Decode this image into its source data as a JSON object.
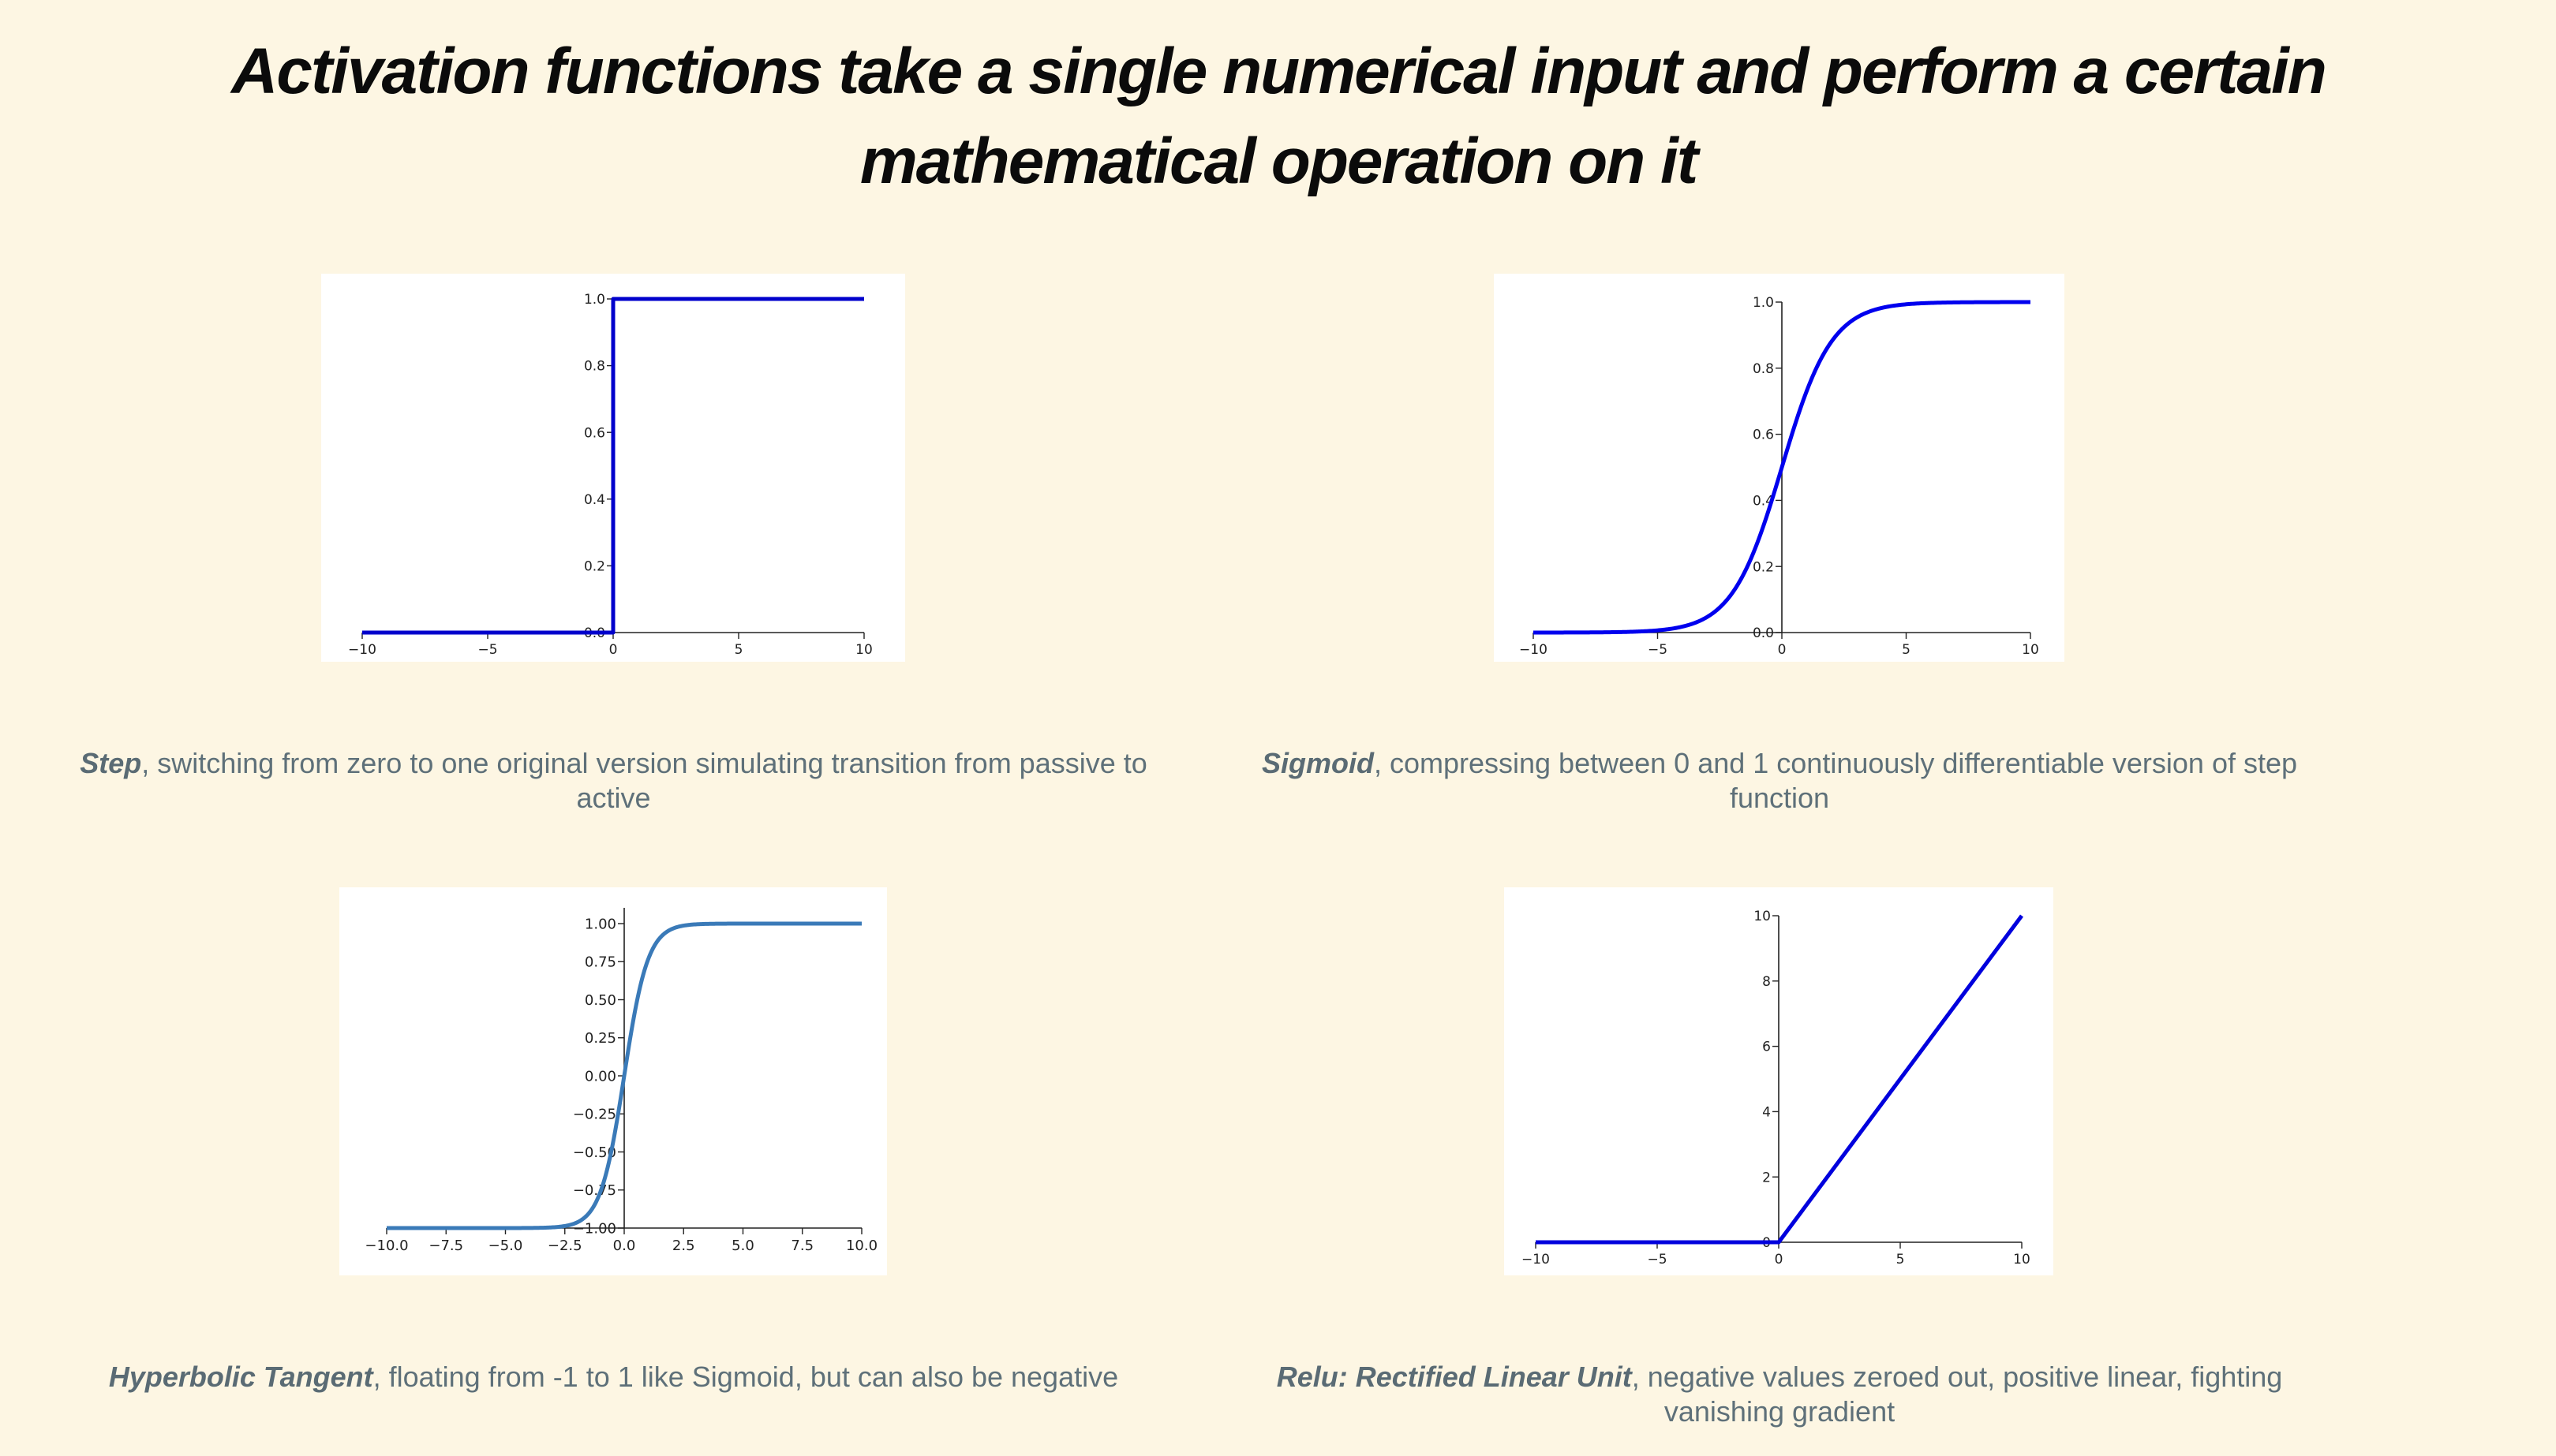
{
  "slide": {
    "title": "Activation functions take a single numerical input and perform a certain mathematical operation on it"
  },
  "captions": [
    {
      "name": "Step",
      "text": ", switching from zero to one original version simulating transition from passive to active"
    },
    {
      "name": "Sigmoid",
      "text": ", compressing between 0 and 1 continuously differentiable version of step function"
    },
    {
      "name": "Hyperbolic Tangent",
      "text": ", floating from -1 to 1 like Sigmoid, but can also be negative"
    },
    {
      "name": "Relu: Rectified Linear Unit",
      "text": ", negative values zeroed out, positive linear, fighting vanishing gradient"
    }
  ],
  "chart_data": [
    {
      "type": "line",
      "title": "",
      "xlabel": "",
      "ylabel": "",
      "function": "step",
      "xlim": [
        -10,
        10
      ],
      "ylim": [
        0,
        1
      ],
      "x_ticks": [
        -10,
        -5,
        0,
        5,
        10
      ],
      "x_tick_labels": [
        "−10",
        "−5",
        "0",
        "5",
        "10"
      ],
      "y_ticks": [
        0,
        0.2,
        0.4,
        0.6,
        0.8,
        1.0
      ],
      "y_tick_labels": [
        "0.0",
        "0.2",
        "0.4",
        "0.6",
        "0.8",
        "1.0"
      ],
      "x": [
        -10,
        0,
        0,
        10
      ],
      "y": [
        0,
        0,
        1,
        1
      ],
      "color": "#0000cc",
      "grid": false
    },
    {
      "type": "line",
      "title": "",
      "xlabel": "",
      "ylabel": "",
      "function": "sigmoid",
      "xlim": [
        -10,
        10
      ],
      "ylim": [
        0,
        1
      ],
      "x_ticks": [
        -10,
        -5,
        0,
        5,
        10
      ],
      "x_tick_labels": [
        "−10",
        "−5",
        "0",
        "5",
        "10"
      ],
      "y_ticks": [
        0,
        0.2,
        0.4,
        0.6,
        0.8,
        1.0
      ],
      "y_tick_labels": [
        "0.0",
        "0.2",
        "0.4",
        "0.6",
        "0.8",
        "1.0"
      ],
      "x": [
        -10,
        -8,
        -6,
        -5,
        -4,
        -3,
        -2,
        -1,
        0,
        1,
        2,
        3,
        4,
        5,
        6,
        8,
        10
      ],
      "y": [
        0.0,
        0.0003,
        0.0025,
        0.0067,
        0.018,
        0.047,
        0.119,
        0.269,
        0.5,
        0.731,
        0.881,
        0.953,
        0.982,
        0.993,
        0.9975,
        0.9997,
        1.0
      ],
      "color": "#0000ee",
      "grid": false
    },
    {
      "type": "line",
      "title": "",
      "xlabel": "",
      "ylabel": "",
      "function": "tanh",
      "xlim": [
        -10,
        10
      ],
      "ylim": [
        -1,
        1
      ],
      "x_ticks": [
        -10,
        -7.5,
        -5,
        -2.5,
        0,
        2.5,
        5,
        7.5,
        10
      ],
      "x_tick_labels": [
        "−10.0",
        "−7.5",
        "−5.0",
        "−2.5",
        "0.0",
        "2.5",
        "5.0",
        "7.5",
        "10.0"
      ],
      "y_ticks": [
        -1,
        -0.75,
        -0.5,
        -0.25,
        0,
        0.25,
        0.5,
        0.75,
        1
      ],
      "y_tick_labels": [
        "−1.00",
        "−0.75",
        "−0.50",
        "−0.25",
        "0.00",
        "0.25",
        "0.50",
        "0.75",
        "1.00"
      ],
      "x": [
        -10,
        -5,
        -4,
        -3,
        -2.5,
        -2,
        -1.5,
        -1,
        -0.5,
        0,
        0.5,
        1,
        1.5,
        2,
        2.5,
        3,
        4,
        5,
        10
      ],
      "y": [
        -1.0,
        -0.9999,
        -0.9993,
        -0.995,
        -0.987,
        -0.964,
        -0.905,
        -0.762,
        -0.462,
        0.0,
        0.462,
        0.762,
        0.905,
        0.964,
        0.987,
        0.995,
        0.9993,
        0.9999,
        1.0
      ],
      "color": "#3a7ab8",
      "grid": false
    },
    {
      "type": "line",
      "title": "",
      "xlabel": "",
      "ylabel": "",
      "function": "relu",
      "xlim": [
        -10,
        10
      ],
      "ylim": [
        0,
        10
      ],
      "x_ticks": [
        -10,
        -5,
        0,
        5,
        10
      ],
      "x_tick_labels": [
        "−10",
        "−5",
        "0",
        "5",
        "10"
      ],
      "y_ticks": [
        0,
        2,
        4,
        6,
        8,
        10
      ],
      "y_tick_labels": [
        "0",
        "2",
        "4",
        "6",
        "8",
        "10"
      ],
      "x": [
        -10,
        0,
        10
      ],
      "y": [
        0,
        0,
        10
      ],
      "color": "#0000dd",
      "grid": false
    }
  ]
}
